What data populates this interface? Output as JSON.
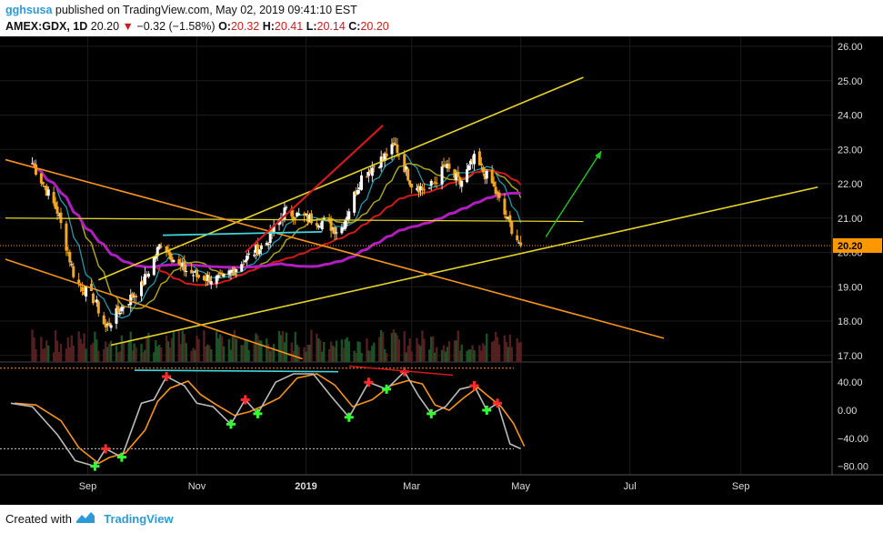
{
  "header": {
    "user": "gghsusa",
    "published_text": "published on TradingView.com, May 02, 2019 09:41:10 EST",
    "symbol": "AMEX:GDX, 1D",
    "price": "20.20",
    "change": "−0.32 (−1.58%)",
    "o_label": "O:",
    "o_value": "20.32",
    "h_label": "H:",
    "h_value": "20.41",
    "l_label": "L:",
    "l_value": "20.14",
    "c_label": "C:",
    "c_value": "20.20"
  },
  "footer": {
    "created_with": "Created with",
    "brand": "TradingView"
  },
  "colors": {
    "background": "#000000",
    "up": "#ffffff",
    "down": "#f5a623",
    "negative": "#d11a1a",
    "sma_fast": "#1fa3b8",
    "sma_mid": "#a8a21d",
    "sma_red": "#d11a1a",
    "sma_magenta": "#b01ec0",
    "trend_yellow": "#e6d42a",
    "trend_orange": "#f7941d",
    "arrow_green": "#22c722",
    "last_price": "#ff9800"
  },
  "chart_data": [
    {
      "type": "candlestick",
      "symbol": "AMEX:GDX",
      "interval": "1D",
      "x_tick_labels": [
        "Sep",
        "Nov",
        "2019",
        "Mar",
        "May",
        "Jul",
        "Sep"
      ],
      "y_tick_labels": [
        "26.00",
        "25.00",
        "24.00",
        "23.00",
        "22.00",
        "21.00",
        "20.00",
        "19.00",
        "18.00",
        "17.00"
      ],
      "ylim": [
        17.0,
        26.0
      ],
      "last_price_label": "20.20",
      "last_price": 20.2,
      "close_path": [
        [
          "2018-08-01",
          22.6
        ],
        [
          "2018-08-15",
          21.2
        ],
        [
          "2018-08-25",
          19.2
        ],
        [
          "2018-09-05",
          18.6
        ],
        [
          "2018-09-11",
          17.8
        ],
        [
          "2018-09-20",
          18.4
        ],
        [
          "2018-10-01",
          19.0
        ],
        [
          "2018-10-12",
          20.3
        ],
        [
          "2018-10-22",
          19.6
        ],
        [
          "2018-11-01",
          19.3
        ],
        [
          "2018-11-15",
          19.2
        ],
        [
          "2018-11-28",
          19.8
        ],
        [
          "2018-12-10",
          20.3
        ],
        [
          "2018-12-20",
          21.2
        ],
        [
          "2019-01-01",
          21.0
        ],
        [
          "2019-01-10",
          20.9
        ],
        [
          "2019-01-20",
          20.6
        ],
        [
          "2019-02-01",
          22.2
        ],
        [
          "2019-02-12",
          22.7
        ],
        [
          "2019-02-20",
          23.1
        ],
        [
          "2019-03-01",
          22.0
        ],
        [
          "2019-03-10",
          21.8
        ],
        [
          "2019-03-20",
          22.5
        ],
        [
          "2019-03-28",
          22.0
        ],
        [
          "2019-04-05",
          22.7
        ],
        [
          "2019-04-15",
          22.0
        ],
        [
          "2019-04-22",
          21.1
        ],
        [
          "2019-05-01",
          20.2
        ]
      ]
    },
    {
      "type": "line",
      "indicator": "stochastic",
      "y_tick_labels": [
        "40.00",
        "0.00",
        "−40.00",
        "−80.00"
      ],
      "ylim": [
        -85,
        70
      ],
      "oscillator_path": [
        [
          "2018-07-20",
          10
        ],
        [
          "2018-08-01",
          5
        ],
        [
          "2018-08-15",
          -35
        ],
        [
          "2018-08-25",
          -72
        ],
        [
          "2018-09-05",
          -80
        ],
        [
          "2018-09-11",
          -55
        ],
        [
          "2018-09-20",
          -67
        ],
        [
          "2018-10-01",
          10
        ],
        [
          "2018-10-08",
          15
        ],
        [
          "2018-10-15",
          48
        ],
        [
          "2018-10-25",
          35
        ],
        [
          "2018-11-01",
          10
        ],
        [
          "2018-11-10",
          5
        ],
        [
          "2018-11-20",
          -20
        ],
        [
          "2018-11-28",
          15
        ],
        [
          "2018-12-05",
          -5
        ],
        [
          "2018-12-15",
          40
        ],
        [
          "2018-12-25",
          52
        ],
        [
          "2019-01-05",
          52
        ],
        [
          "2019-01-15",
          20
        ],
        [
          "2019-01-25",
          -10
        ],
        [
          "2019-02-05",
          40
        ],
        [
          "2019-02-15",
          30
        ],
        [
          "2019-02-25",
          55
        ],
        [
          "2019-03-05",
          20
        ],
        [
          "2019-03-12",
          -5
        ],
        [
          "2019-03-20",
          5
        ],
        [
          "2019-03-28",
          30
        ],
        [
          "2019-04-05",
          35
        ],
        [
          "2019-04-12",
          0
        ],
        [
          "2019-04-18",
          10
        ],
        [
          "2019-04-25",
          -48
        ],
        [
          "2019-05-01",
          -55
        ]
      ]
    }
  ]
}
